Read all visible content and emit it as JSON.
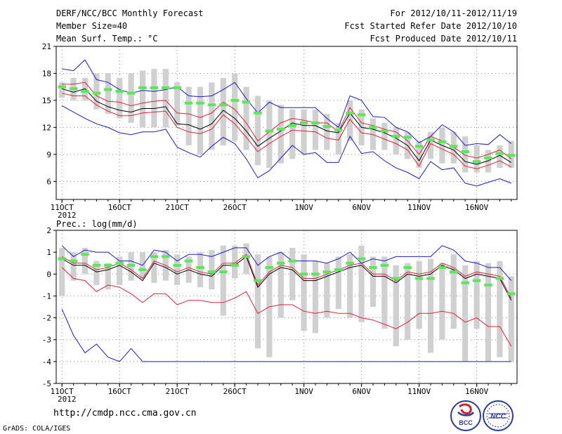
{
  "header": {
    "title": "DERF/NCC/BCC Monthly Forecast",
    "member_size": "Member Size=40",
    "variable": "Mean Surf. Temp.: °C",
    "for_range": "For 2012/10/11-2012/11/19",
    "fcst_started": "Fcst Started Refer Date 2012/10/10",
    "fcst_produced": "Fcst Produced Date 2012/10/11"
  },
  "footer": {
    "url": "http://cmdp.ncc.cma.gov.cn",
    "grads": "GrADS: COLA/IGES",
    "logo_bcc": "BCC",
    "logo_ncc": "NCC"
  },
  "colors": {
    "spread_bar": "#d0d0d0",
    "median_mark": "#5ce65c",
    "mean_line": "#000000",
    "inner_line": "#e0203a",
    "outer_line": "#1a1acc",
    "grid": "#888888"
  },
  "chart_data": [
    {
      "id": "temp",
      "type": "line",
      "title": "Mean Surf. Temp.: °C",
      "ylim": [
        4,
        21
      ],
      "yticks": [
        6,
        9,
        12,
        15,
        18,
        21
      ],
      "xlim": [
        0.5,
        40.5
      ],
      "xticks": [
        {
          "day": 1,
          "label": "11OCT",
          "sub": "2012"
        },
        {
          "day": 6,
          "label": "16OCT"
        },
        {
          "day": 11,
          "label": "21OCT"
        },
        {
          "day": 16,
          "label": "26OCT"
        },
        {
          "day": 22,
          "label": "1NOV"
        },
        {
          "day": 27,
          "label": "6NOV"
        },
        {
          "day": 32,
          "label": "11NOV"
        },
        {
          "day": 37,
          "label": "16NOV"
        }
      ],
      "days": [
        1,
        2,
        3,
        4,
        5,
        6,
        7,
        8,
        9,
        10,
        11,
        12,
        13,
        14,
        15,
        16,
        17,
        18,
        19,
        20,
        21,
        22,
        23,
        24,
        25,
        26,
        27,
        28,
        29,
        30,
        31,
        32,
        33,
        34,
        35,
        36,
        37,
        38,
        39,
        40
      ],
      "bar_low": [
        15.3,
        15.0,
        15.0,
        14.0,
        13.5,
        13.0,
        12.5,
        12.0,
        12.0,
        12.0,
        12.2,
        10.0,
        9.0,
        9.5,
        10.0,
        10.5,
        9.5,
        7.8,
        7.5,
        8.0,
        8.5,
        9.0,
        9.5,
        9.5,
        9.0,
        10.5,
        10.0,
        9.5,
        9.5,
        9.0,
        8.5,
        7.5,
        8.5,
        8.0,
        8.0,
        7.0,
        7.0,
        7.0,
        7.5,
        7.5
      ],
      "bar_high": [
        17.0,
        17.5,
        17.5,
        18.0,
        18.0,
        17.5,
        18.0,
        18.3,
        18.5,
        18.5,
        17.0,
        16.5,
        16.5,
        17.0,
        17.5,
        18.0,
        16.5,
        15.5,
        15.0,
        14.5,
        14.0,
        14.0,
        14.0,
        13.5,
        12.5,
        15.0,
        14.0,
        13.0,
        12.5,
        12.0,
        11.5,
        10.5,
        11.5,
        12.0,
        11.5,
        11.0,
        10.0,
        9.5,
        10.0,
        10.5
      ],
      "median": [
        16.5,
        16.3,
        16.0,
        15.8,
        16.2,
        16.0,
        15.8,
        16.4,
        16.4,
        16.4,
        16.4,
        14.7,
        14.7,
        14.5,
        14.5,
        15.0,
        14.8,
        13.6,
        11.6,
        11.8,
        12.2,
        12.5,
        12.5,
        12.1,
        11.7,
        13.6,
        13.4,
        12.0,
        11.6,
        11.0,
        10.9,
        9.9,
        10.6,
        10.4,
        9.9,
        9.3,
        8.2,
        8.6,
        9.1,
        8.9
      ],
      "series": [
        {
          "name": "max",
          "color": "#1a1acc",
          "values": [
            18.5,
            18.3,
            19.5,
            17.3,
            17.0,
            16.2,
            15.8,
            16.1,
            16.0,
            16.2,
            16.5,
            15.5,
            15.4,
            15.5,
            16.2,
            17.0,
            15.2,
            13.6,
            14.8,
            14.2,
            14.2,
            14.2,
            14.2,
            13.0,
            12.0,
            15.5,
            15.0,
            13.2,
            13.1,
            12.0,
            11.5,
            10.3,
            11.0,
            12.3,
            11.5,
            10.0,
            10.2,
            10.1,
            11.2,
            10.2
          ]
        },
        {
          "name": "upper",
          "color": "#e0203a",
          "values": [
            16.8,
            16.8,
            17.0,
            15.5,
            14.9,
            14.8,
            14.4,
            14.7,
            14.9,
            15.0,
            13.6,
            13.5,
            13.1,
            13.6,
            14.8,
            14.0,
            12.5,
            10.5,
            11.5,
            12.5,
            13.0,
            12.8,
            12.5,
            12.5,
            11.5,
            14.2,
            12.5,
            12.2,
            11.8,
            11.5,
            10.5,
            9.0,
            11.0,
            10.5,
            9.8,
            8.9,
            8.6,
            9.0,
            9.5,
            8.5
          ]
        },
        {
          "name": "mean",
          "color": "#000000",
          "values": [
            16.3,
            15.9,
            16.3,
            14.9,
            14.3,
            13.9,
            13.7,
            14.1,
            14.1,
            14.3,
            12.4,
            12.3,
            11.8,
            12.4,
            13.9,
            13.0,
            11.6,
            9.9,
            10.8,
            11.6,
            12.5,
            12.2,
            12.2,
            11.6,
            11.4,
            13.6,
            12.0,
            11.8,
            11.4,
            10.8,
            10.0,
            8.3,
            10.6,
            10.0,
            9.5,
            8.2,
            7.9,
            8.3,
            8.9,
            8.1
          ]
        },
        {
          "name": "lower",
          "color": "#e0203a",
          "values": [
            15.8,
            15.5,
            15.5,
            14.5,
            13.8,
            13.3,
            13.3,
            13.6,
            13.7,
            13.8,
            12.0,
            11.5,
            11.3,
            11.8,
            13.4,
            12.4,
            10.9,
            9.3,
            10.2,
            11.0,
            11.7,
            11.6,
            11.5,
            10.8,
            10.6,
            12.9,
            11.4,
            11.2,
            10.7,
            10.2,
            9.5,
            7.7,
            10.2,
            9.6,
            9.0,
            7.7,
            7.4,
            7.8,
            8.3,
            7.6
          ]
        },
        {
          "name": "min",
          "color": "#1a1acc",
          "values": [
            14.4,
            13.7,
            13.0,
            12.4,
            12.0,
            11.4,
            11.2,
            11.5,
            11.5,
            11.8,
            9.8,
            9.2,
            8.7,
            9.9,
            10.9,
            10.2,
            8.5,
            6.4,
            7.2,
            8.6,
            10.0,
            9.0,
            9.2,
            8.1,
            8.1,
            11.0,
            9.1,
            9.3,
            8.3,
            7.5,
            7.0,
            6.3,
            8.2,
            7.3,
            7.5,
            5.8,
            5.5,
            5.9,
            6.3,
            5.8
          ]
        }
      ]
    },
    {
      "id": "prec",
      "type": "line",
      "title": "Prec.: log(mm/d)",
      "ylim": [
        -5,
        2
      ],
      "yticks": [
        -5,
        -4,
        -3,
        -2,
        -1,
        0,
        1,
        2
      ],
      "xlim": [
        0.5,
        40.5
      ],
      "xticks": [
        {
          "day": 1,
          "label": "11OCT",
          "sub": "2012"
        },
        {
          "day": 6,
          "label": "16OCT"
        },
        {
          "day": 11,
          "label": "21OCT"
        },
        {
          "day": 16,
          "label": "26OCT"
        },
        {
          "day": 22,
          "label": "1NOV"
        },
        {
          "day": 27,
          "label": "6NOV"
        },
        {
          "day": 32,
          "label": "11NOV"
        },
        {
          "day": 37,
          "label": "16NOV"
        }
      ],
      "days": [
        1,
        2,
        3,
        4,
        5,
        6,
        7,
        8,
        9,
        10,
        11,
        12,
        13,
        14,
        15,
        16,
        17,
        18,
        19,
        20,
        21,
        22,
        23,
        24,
        25,
        26,
        27,
        28,
        29,
        30,
        31,
        32,
        33,
        34,
        35,
        36,
        37,
        38,
        39,
        40
      ],
      "bar_low": [
        -1.0,
        -0.3,
        0.0,
        -0.5,
        -0.7,
        -0.5,
        -0.3,
        -0.2,
        -0.4,
        -0.3,
        -0.5,
        -0.4,
        -0.6,
        -0.7,
        -1.9,
        -0.2,
        0.0,
        -3.4,
        -3.8,
        -2.0,
        -1.2,
        -2.6,
        -2.7,
        -2.0,
        -1.6,
        -2.0,
        -2.2,
        -1.5,
        -2.5,
        -3.3,
        -3.0,
        -2.5,
        -3.6,
        -3.0,
        -2.5,
        -4.0,
        -2.5,
        -4.0,
        -3.8,
        -4.0
      ],
      "bar_high": [
        1.2,
        1.0,
        1.2,
        0.6,
        0.5,
        0.8,
        1.0,
        1.0,
        1.0,
        1.1,
        0.9,
        0.8,
        1.0,
        1.1,
        1.3,
        1.3,
        1.4,
        0.9,
        0.8,
        1.0,
        1.2,
        0.9,
        0.6,
        0.5,
        0.8,
        0.9,
        1.3,
        0.8,
        0.8,
        0.4,
        0.5,
        0.6,
        0.7,
        0.5,
        0.9,
        0.4,
        0.6,
        0.5,
        0.6,
        -0.1
      ],
      "median": [
        0.7,
        0.6,
        0.9,
        0.4,
        0.4,
        0.5,
        0.4,
        0.2,
        0.8,
        0.8,
        0.4,
        0.6,
        0.3,
        0.1,
        0.1,
        0.4,
        0.8,
        -0.3,
        0.3,
        0.5,
        0.6,
        0.0,
        0.0,
        0.1,
        0.2,
        0.5,
        0.7,
        0.3,
        0.4,
        -0.2,
        0.3,
        -0.2,
        -0.2,
        0.3,
        0.1,
        -0.4,
        -0.3,
        -0.5,
        -0.2,
        -0.9
      ],
      "series": [
        {
          "name": "max",
          "color": "#1a1acc",
          "values": [
            1.3,
            0.8,
            1.1,
            1.0,
            1.0,
            0.6,
            0.6,
            0.4,
            1.1,
            1.0,
            0.6,
            0.9,
            0.9,
            0.8,
            1.0,
            1.2,
            1.2,
            0.4,
            0.8,
            1.0,
            0.6,
            0.6,
            0.6,
            0.5,
            0.7,
            1.0,
            0.5,
            0.7,
            0.6,
            0.8,
            0.8,
            0.8,
            0.8,
            1.3,
            1.1,
            0.6,
            0.5,
            0.3,
            0.3,
            -0.3
          ]
        },
        {
          "name": "upper",
          "color": "#e0203a",
          "values": [
            0.8,
            0.5,
            0.5,
            0.2,
            0.3,
            0.5,
            0.2,
            -0.2,
            0.6,
            0.4,
            0.1,
            0.3,
            0.1,
            0.0,
            0.5,
            0.5,
            0.9,
            -0.5,
            0.1,
            0.4,
            0.3,
            -0.2,
            -0.2,
            0.0,
            0.2,
            0.4,
            0.5,
            0.0,
            0.0,
            -0.3,
            0.1,
            0.0,
            0.1,
            0.5,
            0.3,
            -0.1,
            0.1,
            0.0,
            -0.1,
            -1.1
          ]
        },
        {
          "name": "mean",
          "color": "#000000",
          "values": [
            0.7,
            0.4,
            0.4,
            0.1,
            0.2,
            0.4,
            0.1,
            -0.3,
            0.5,
            0.3,
            0.0,
            0.2,
            0.0,
            -0.1,
            0.4,
            0.4,
            0.8,
            -0.6,
            0.0,
            0.3,
            0.2,
            -0.3,
            -0.3,
            -0.1,
            0.1,
            0.3,
            0.4,
            -0.1,
            -0.1,
            -0.4,
            0.0,
            -0.1,
            0.0,
            0.4,
            0.2,
            -0.2,
            0.0,
            -0.1,
            -0.2,
            -1.2
          ]
        },
        {
          "name": "lower",
          "color": "#e0203a",
          "values": [
            0.3,
            -0.2,
            -0.3,
            -0.8,
            -0.5,
            -0.6,
            -0.9,
            -1.3,
            -0.9,
            -0.9,
            -1.4,
            -1.2,
            -1.2,
            -1.3,
            -1.3,
            -1.1,
            -0.8,
            -1.8,
            -1.5,
            -1.4,
            -1.4,
            -1.7,
            -1.8,
            -1.7,
            -1.8,
            -1.8,
            -2.0,
            -2.1,
            -2.3,
            -2.5,
            -2.2,
            -1.8,
            -1.8,
            -1.7,
            -1.8,
            -2.2,
            -2.0,
            -2.4,
            -2.4,
            -3.3
          ]
        },
        {
          "name": "min",
          "color": "#1a1acc",
          "values": [
            -1.6,
            -2.8,
            -3.6,
            -3.2,
            -3.8,
            -4.0,
            -3.4,
            -4.0,
            -4.0,
            -4.0,
            -4.0,
            -4.0,
            -4.0,
            -4.0,
            -4.0,
            -4.0,
            -4.0,
            -4.0,
            -4.0,
            -4.0,
            -4.0,
            -4.0,
            -4.0,
            -4.0,
            -4.0,
            -4.0,
            -4.0,
            -4.0,
            -4.0,
            -4.0,
            -4.0,
            -4.0,
            -4.0,
            -4.0,
            -4.0,
            -4.0,
            -4.0,
            -4.0,
            -4.0,
            -4.0
          ]
        }
      ]
    }
  ]
}
